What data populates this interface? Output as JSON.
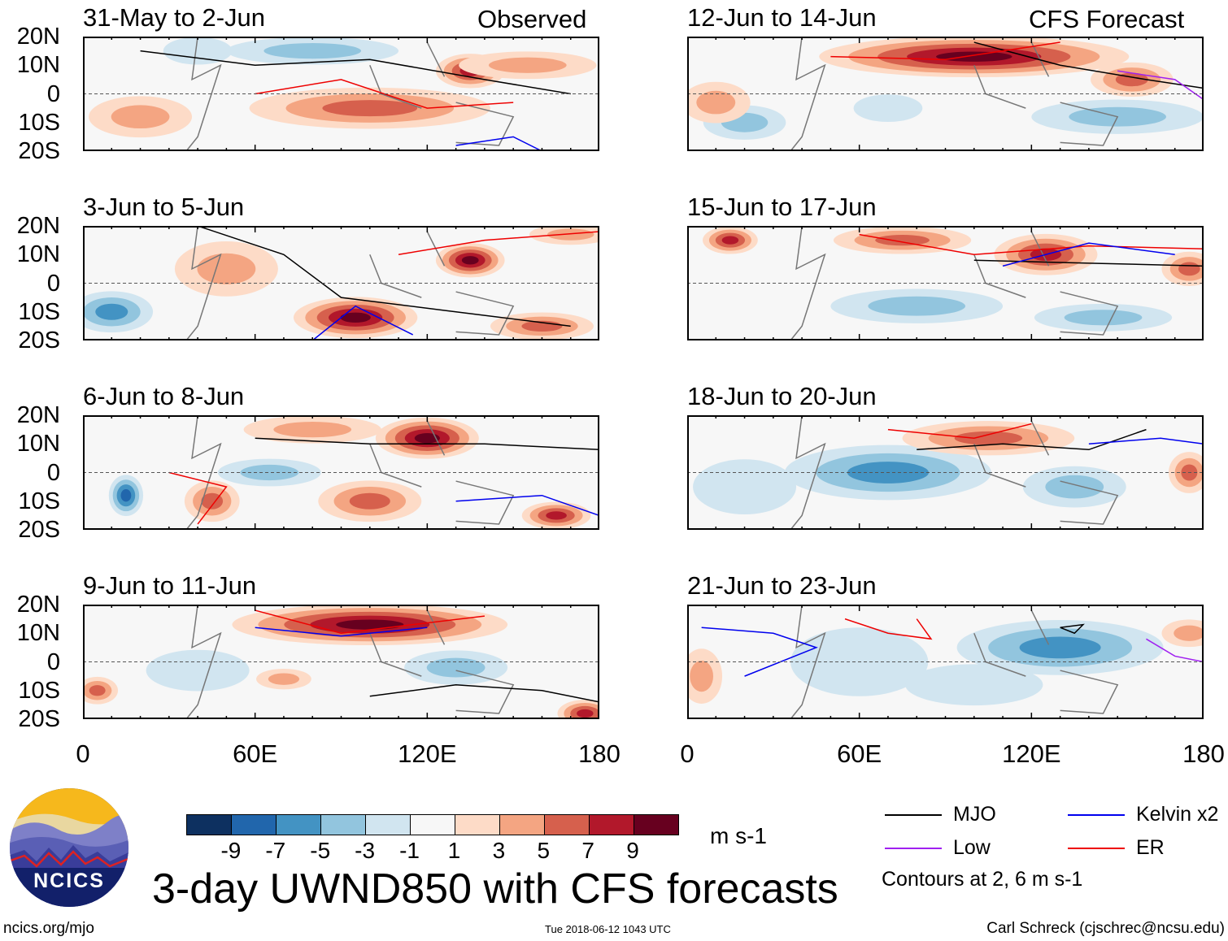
{
  "header": {
    "observed_label": "Observed",
    "forecast_label": "CFS Forecast"
  },
  "lat_labels": [
    "20N",
    "10N",
    "0",
    "10S",
    "20S"
  ],
  "lon_labels": [
    "0",
    "60E",
    "120E",
    "180"
  ],
  "colorbar": {
    "colors": [
      "#0d3060",
      "#2166ac",
      "#4393c3",
      "#92c5de",
      "#d1e5f0",
      "#f7f7f7",
      "#fddbc7",
      "#f4a582",
      "#d6604d",
      "#b2182b",
      "#67001f"
    ],
    "labels": [
      "-9",
      "-7",
      "-5",
      "-3",
      "-1",
      "1",
      "3",
      "5",
      "7",
      "9"
    ],
    "units": "m s-1"
  },
  "title": "3-day UWND850 with CFS forecasts",
  "legend": {
    "items": [
      {
        "label": "MJO",
        "color": "#000000"
      },
      {
        "label": "Kelvin x2",
        "color": "#0000ee"
      },
      {
        "label": "Low",
        "color": "#a020f0"
      },
      {
        "label": "ER",
        "color": "#ee0000"
      }
    ],
    "note": "Contours at 2, 6 m s-1"
  },
  "logo": {
    "text": "NCICS"
  },
  "footer": {
    "url": "ncics.org/mjo",
    "timestamp": "Tue 2018-06-12 1043 UTC",
    "credit": "Carl Schreck (cjschrec@ncsu.edu)"
  },
  "chart_data": {
    "type": "heatmap",
    "variable": "850-hPa zonal wind anomaly",
    "lon_range": [
      0,
      180
    ],
    "lat_range": [
      -20,
      20
    ],
    "panels": [
      {
        "title": "31-May to 2-Jun",
        "group": "Observed",
        "anomalies": [
          [
            100,
            -5,
            6,
            35,
            6
          ],
          [
            135,
            8,
            7,
            10,
            5
          ],
          [
            80,
            15,
            -3,
            25,
            4
          ],
          [
            20,
            -8,
            3,
            15,
            6
          ],
          [
            155,
            10,
            3,
            20,
            4
          ],
          [
            40,
            15,
            -2,
            10,
            4
          ]
        ],
        "contours": [
          {
            "type": "MJO",
            "pts": [
              [
                20,
                15
              ],
              [
                60,
                10
              ],
              [
                100,
                12
              ],
              [
                140,
                5
              ],
              [
                170,
                0
              ]
            ]
          },
          {
            "type": "ER",
            "pts": [
              [
                60,
                0
              ],
              [
                90,
                5
              ],
              [
                120,
                -5
              ],
              [
                150,
                -3
              ]
            ]
          },
          {
            "type": "Kelvin",
            "pts": [
              [
                130,
                -18
              ],
              [
                150,
                -15
              ],
              [
                160,
                -20
              ]
            ]
          }
        ]
      },
      {
        "title": "3-Jun to 5-Jun",
        "group": "Observed",
        "anomalies": [
          [
            135,
            8,
            9,
            10,
            5
          ],
          [
            95,
            -12,
            9,
            18,
            6
          ],
          [
            160,
            -15,
            5,
            15,
            4
          ],
          [
            10,
            -10,
            -5,
            12,
            6
          ],
          [
            50,
            5,
            3,
            15,
            8
          ],
          [
            170,
            17,
            3,
            12,
            3
          ]
        ],
        "contours": [
          {
            "type": "MJO",
            "pts": [
              [
                40,
                20
              ],
              [
                70,
                10
              ],
              [
                90,
                -5
              ],
              [
                130,
                -10
              ],
              [
                170,
                -15
              ]
            ]
          },
          {
            "type": "Kelvin",
            "pts": [
              [
                80,
                -20
              ],
              [
                95,
                -8
              ],
              [
                115,
                -18
              ]
            ]
          },
          {
            "type": "ER",
            "pts": [
              [
                110,
                10
              ],
              [
                140,
                15
              ],
              [
                180,
                18
              ]
            ]
          }
        ]
      },
      {
        "title": "6-Jun to 8-Jun",
        "group": "Observed",
        "anomalies": [
          [
            120,
            12,
            9,
            15,
            6
          ],
          [
            80,
            15,
            3,
            20,
            4
          ],
          [
            100,
            -10,
            5,
            15,
            6
          ],
          [
            165,
            -15,
            7,
            10,
            4
          ],
          [
            15,
            -8,
            -7,
            5,
            6
          ],
          [
            65,
            0,
            -3,
            15,
            4
          ],
          [
            45,
            -10,
            5,
            8,
            6
          ]
        ],
        "contours": [
          {
            "type": "MJO",
            "pts": [
              [
                60,
                12
              ],
              [
                100,
                10
              ],
              [
                140,
                10
              ],
              [
                180,
                8
              ]
            ]
          },
          {
            "type": "Kelvin",
            "pts": [
              [
                130,
                -10
              ],
              [
                160,
                -8
              ],
              [
                180,
                -15
              ]
            ]
          },
          {
            "type": "ER",
            "pts": [
              [
                30,
                0
              ],
              [
                50,
                -5
              ],
              [
                40,
                -18
              ]
            ]
          }
        ]
      },
      {
        "title": "9-Jun to 11-Jun",
        "group": "Observed",
        "anomalies": [
          [
            100,
            13,
            9,
            40,
            6
          ],
          [
            130,
            -2,
            -3,
            15,
            5
          ],
          [
            175,
            -18,
            7,
            8,
            4
          ],
          [
            5,
            -10,
            5,
            6,
            4
          ],
          [
            70,
            -6,
            3,
            8,
            3
          ],
          [
            40,
            -3,
            -2,
            15,
            6
          ]
        ],
        "contours": [
          {
            "type": "MJO",
            "pts": [
              [
                100,
                -12
              ],
              [
                130,
                -8
              ],
              [
                160,
                -10
              ],
              [
                180,
                -14
              ]
            ]
          },
          {
            "type": "Kelvin",
            "pts": [
              [
                60,
                12
              ],
              [
                90,
                9
              ],
              [
                120,
                12
              ]
            ]
          },
          {
            "type": "ER",
            "pts": [
              [
                60,
                18
              ],
              [
                90,
                10
              ],
              [
                140,
                16
              ]
            ]
          }
        ]
      },
      {
        "title": "12-Jun to 14-Jun",
        "group": "CFS Forecast",
        "anomalies": [
          [
            100,
            13,
            9,
            45,
            6
          ],
          [
            155,
            5,
            5,
            12,
            5
          ],
          [
            150,
            -8,
            -3,
            25,
            5
          ],
          [
            20,
            -10,
            -3,
            12,
            5
          ],
          [
            10,
            -3,
            3,
            10,
            6
          ],
          [
            70,
            -5,
            -2,
            10,
            4
          ]
        ],
        "contours": [
          {
            "type": "MJO",
            "pts": [
              [
                100,
                18
              ],
              [
                130,
                10
              ],
              [
                160,
                5
              ],
              [
                180,
                2
              ]
            ]
          },
          {
            "type": "ER",
            "pts": [
              [
                50,
                13
              ],
              [
                90,
                12
              ],
              [
                130,
                18
              ]
            ]
          },
          {
            "type": "Low",
            "pts": [
              [
                150,
                8
              ],
              [
                170,
                5
              ],
              [
                180,
                -2
              ]
            ]
          }
        ]
      },
      {
        "title": "15-Jun to 17-Jun",
        "group": "CFS Forecast",
        "anomalies": [
          [
            15,
            15,
            7,
            8,
            4
          ],
          [
            125,
            10,
            7,
            15,
            6
          ],
          [
            75,
            15,
            5,
            20,
            4
          ],
          [
            80,
            -8,
            -3,
            25,
            5
          ],
          [
            145,
            -12,
            -3,
            20,
            4
          ],
          [
            175,
            5,
            5,
            8,
            5
          ]
        ],
        "contours": [
          {
            "type": "MJO",
            "pts": [
              [
                100,
                8
              ],
              [
                140,
                7
              ],
              [
                180,
                6
              ]
            ]
          },
          {
            "type": "ER",
            "pts": [
              [
                60,
                17
              ],
              [
                100,
                10
              ],
              [
                140,
                13
              ],
              [
                180,
                12
              ]
            ]
          },
          {
            "type": "Kelvin",
            "pts": [
              [
                110,
                6
              ],
              [
                140,
                14
              ],
              [
                170,
                10
              ]
            ]
          }
        ]
      },
      {
        "title": "18-Jun to 20-Jun",
        "group": "CFS Forecast",
        "anomalies": [
          [
            70,
            0,
            -5,
            30,
            8
          ],
          [
            105,
            12,
            5,
            25,
            5
          ],
          [
            175,
            0,
            5,
            6,
            6
          ],
          [
            135,
            -5,
            -3,
            15,
            6
          ],
          [
            20,
            -5,
            -2,
            15,
            8
          ]
        ],
        "contours": [
          {
            "type": "MJO",
            "pts": [
              [
                80,
                8
              ],
              [
                110,
                10
              ],
              [
                140,
                8
              ],
              [
                160,
                15
              ]
            ]
          },
          {
            "type": "Kelvin",
            "pts": [
              [
                140,
                10
              ],
              [
                165,
                12
              ],
              [
                180,
                10
              ]
            ]
          },
          {
            "type": "ER",
            "pts": [
              [
                70,
                15
              ],
              [
                100,
                12
              ],
              [
                120,
                17
              ]
            ]
          }
        ]
      },
      {
        "title": "21-Jun to 23-Jun",
        "group": "CFS Forecast",
        "anomalies": [
          [
            130,
            5,
            -5,
            30,
            8
          ],
          [
            5,
            -5,
            3,
            6,
            8
          ],
          [
            175,
            10,
            3,
            8,
            4
          ],
          [
            60,
            0,
            -2,
            20,
            10
          ],
          [
            100,
            -8,
            -2,
            20,
            6
          ]
        ],
        "contours": [
          {
            "type": "ER",
            "pts": [
              [
                55,
                15
              ],
              [
                70,
                10
              ],
              [
                85,
                8
              ],
              [
                80,
                15
              ]
            ]
          },
          {
            "type": "Kelvin",
            "pts": [
              [
                5,
                12
              ],
              [
                30,
                10
              ],
              [
                45,
                5
              ],
              [
                20,
                -5
              ]
            ]
          },
          {
            "type": "MJO",
            "pts": [
              [
                130,
                12
              ],
              [
                138,
                13
              ],
              [
                135,
                10
              ],
              [
                130,
                12
              ]
            ]
          },
          {
            "type": "Low",
            "pts": [
              [
                160,
                8
              ],
              [
                170,
                2
              ],
              [
                180,
                0
              ]
            ]
          }
        ]
      }
    ]
  }
}
